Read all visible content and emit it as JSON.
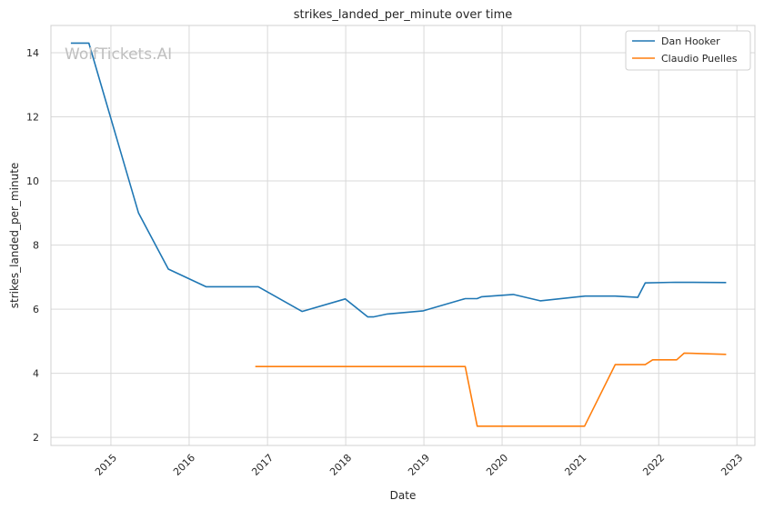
{
  "chart_data": {
    "type": "line",
    "title": "strikes_landed_per_minute over time",
    "xlabel": "Date",
    "ylabel": "strikes_landed_per_minute",
    "watermark": "WolfTickets.AI",
    "x_ticks": [
      "2015",
      "2016",
      "2017",
      "2018",
      "2019",
      "2020",
      "2021",
      "2022",
      "2023"
    ],
    "y_ticks": [
      "2",
      "4",
      "6",
      "8",
      "10",
      "12",
      "14"
    ],
    "xlim": [
      "2014-03-27",
      "2023-03-26"
    ],
    "ylim": [
      1.75,
      14.85
    ],
    "grid": true,
    "legend_position": "top-right",
    "series": [
      {
        "name": "Dan Hooker",
        "color": "#1f77b4",
        "points": [
          [
            "2014-06-28",
            14.3
          ],
          [
            "2014-09-20",
            14.3
          ],
          [
            "2015-05-10",
            9.0
          ],
          [
            "2015-09-26",
            7.25
          ],
          [
            "2016-03-20",
            6.7
          ],
          [
            "2016-11-19",
            6.7
          ],
          [
            "2017-06-11",
            5.93
          ],
          [
            "2017-12-30",
            6.32
          ],
          [
            "2018-04-14",
            5.76
          ],
          [
            "2018-05-10",
            5.76
          ],
          [
            "2018-07-14",
            5.85
          ],
          [
            "2018-12-29",
            5.95
          ],
          [
            "2019-07-13",
            6.33
          ],
          [
            "2019-09-06",
            6.33
          ],
          [
            "2019-09-28",
            6.39
          ],
          [
            "2020-02-22",
            6.46
          ],
          [
            "2020-06-27",
            6.26
          ],
          [
            "2021-01-23",
            6.41
          ],
          [
            "2021-06-12",
            6.41
          ],
          [
            "2021-09-25",
            6.37
          ],
          [
            "2021-10-30",
            6.82
          ],
          [
            "2022-03-19",
            6.84
          ],
          [
            "2022-11-12",
            6.83
          ]
        ]
      },
      {
        "name": "Claudio Puelles",
        "color": "#ff7f0e",
        "points": [
          [
            "2016-11-05",
            4.21
          ],
          [
            "2019-07-13",
            4.21
          ],
          [
            "2019-09-07",
            2.35
          ],
          [
            "2021-01-20",
            2.35
          ],
          [
            "2021-06-12",
            4.27
          ],
          [
            "2021-10-30",
            4.27
          ],
          [
            "2021-12-04",
            4.42
          ],
          [
            "2022-03-26",
            4.42
          ],
          [
            "2022-04-30",
            4.63
          ],
          [
            "2022-11-12",
            4.59
          ]
        ]
      }
    ]
  }
}
